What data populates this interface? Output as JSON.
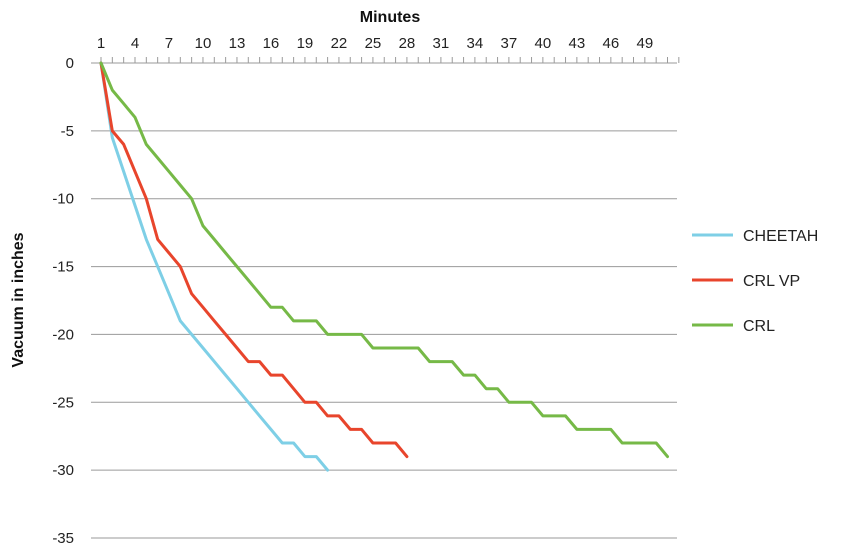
{
  "chart_data": {
    "type": "line",
    "xlabel": "Minutes",
    "ylabel": "Vacuum in inches",
    "x_axis_position": "top",
    "xlim": [
      1,
      52
    ],
    "ylim": [
      -35,
      0
    ],
    "x_tick_labels": [
      "1",
      "4",
      "7",
      "10",
      "13",
      "16",
      "19",
      "22",
      "25",
      "28",
      "31",
      "34",
      "37",
      "40",
      "43",
      "46",
      "49"
    ],
    "y_tick_labels": [
      "0",
      "-5",
      "-10",
      "-15",
      "-20",
      "-25",
      "-30",
      "-35"
    ],
    "grid": "horizontal",
    "legend": "right",
    "series": [
      {
        "name": "CHEETAH",
        "color": "#7ecfe6",
        "x": [
          1,
          2,
          3,
          4,
          5,
          6,
          7,
          8,
          9,
          10,
          11,
          12,
          13,
          14,
          15,
          16,
          17,
          18,
          19,
          20,
          21
        ],
        "y": [
          0,
          -5.5,
          -8,
          -10.5,
          -13,
          -15,
          -17,
          -19,
          -20,
          -21,
          -22,
          -23,
          -24,
          -25,
          -26,
          -27,
          -28,
          -28,
          -29,
          -29,
          -30
        ]
      },
      {
        "name": "CRL VP",
        "color": "#e8452c",
        "x": [
          1,
          2,
          3,
          4,
          5,
          6,
          7,
          8,
          9,
          10,
          11,
          12,
          13,
          14,
          15,
          16,
          17,
          18,
          19,
          20,
          21,
          22,
          23,
          24,
          25,
          26,
          27,
          28
        ],
        "y": [
          0,
          -5,
          -6,
          -8,
          -10,
          -13,
          -14,
          -15,
          -17,
          -18,
          -19,
          -20,
          -21,
          -22,
          -22,
          -23,
          -23,
          -24,
          -25,
          -25,
          -26,
          -26,
          -27,
          -27,
          -28,
          -28,
          -28,
          -29
        ]
      },
      {
        "name": "CRL",
        "color": "#76b947",
        "x": [
          1,
          2,
          3,
          4,
          5,
          6,
          7,
          8,
          9,
          10,
          11,
          12,
          13,
          14,
          15,
          16,
          17,
          18,
          19,
          20,
          21,
          22,
          23,
          24,
          25,
          26,
          27,
          28,
          29,
          30,
          31,
          32,
          33,
          34,
          35,
          36,
          37,
          38,
          39,
          40,
          41,
          42,
          43,
          44,
          45,
          46,
          47,
          48,
          49,
          50,
          51
        ],
        "y": [
          0,
          -2,
          -3,
          -4,
          -6,
          -7,
          -8,
          -9,
          -10,
          -12,
          -13,
          -14,
          -15,
          -16,
          -17,
          -18,
          -18,
          -19,
          -19,
          -19,
          -20,
          -20,
          -20,
          -20,
          -21,
          -21,
          -21,
          -21,
          -21,
          -22,
          -22,
          -22,
          -23,
          -23,
          -24,
          -24,
          -25,
          -25,
          -25,
          -26,
          -26,
          -26,
          -27,
          -27,
          -27,
          -27,
          -28,
          -28,
          -28,
          -28,
          -29
        ]
      }
    ]
  }
}
